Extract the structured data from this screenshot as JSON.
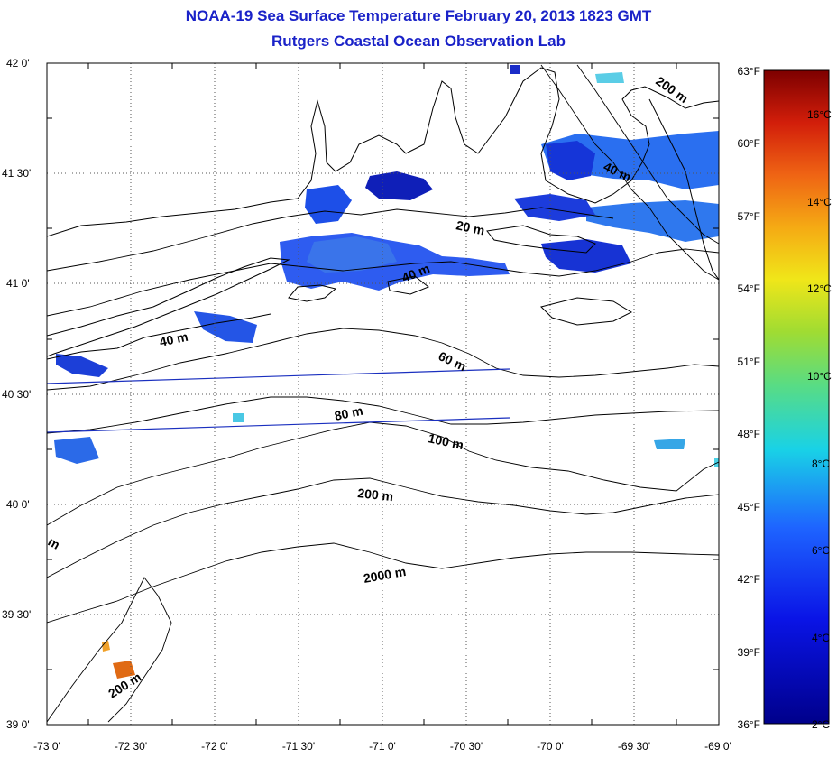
{
  "title": "NOAA-19 Sea Surface Temperature February 20, 2013 1823 GMT",
  "subtitle": "Rutgers Coastal Ocean Observation Lab",
  "map": {
    "lon_range": [
      -73.0,
      -69.0
    ],
    "lat_range": [
      39.0,
      42.0
    ],
    "lat_labels": [
      "42 0'",
      "41 30'",
      "41 0'",
      "40 30'",
      "40 0'",
      "39 30'",
      "39 0'"
    ],
    "lon_labels": [
      "-73 0'",
      "-72 30'",
      "-72 0'",
      "-71 30'",
      "-71 0'",
      "-70 30'",
      "-70 0'",
      "-69 30'",
      "-69 0'"
    ],
    "contour_labels": [
      "200 m",
      "40 m",
      "20 m",
      "40 m",
      "40 m",
      "60 m",
      "80 m",
      "100 m",
      "200 m",
      "2000 m",
      "200 m",
      "m"
    ]
  },
  "colorbar": {
    "fahrenheit_labels": [
      "63°F",
      "60°F",
      "57°F",
      "54°F",
      "51°F",
      "48°F",
      "45°F",
      "42°F",
      "39°F",
      "36°F"
    ],
    "celsius_labels": [
      "16°C",
      "14°C",
      "12°C",
      "10°C",
      "8°C",
      "6°C",
      "4°C",
      "2°C"
    ],
    "colors": {
      "low": "#00008b",
      "mid_blue": "#1e5aff",
      "cyan": "#19d2e6",
      "green": "#7dd23c",
      "yellow": "#f0e619",
      "orange": "#f07814",
      "red": "#dc1e0a",
      "high": "#7d0000"
    }
  }
}
